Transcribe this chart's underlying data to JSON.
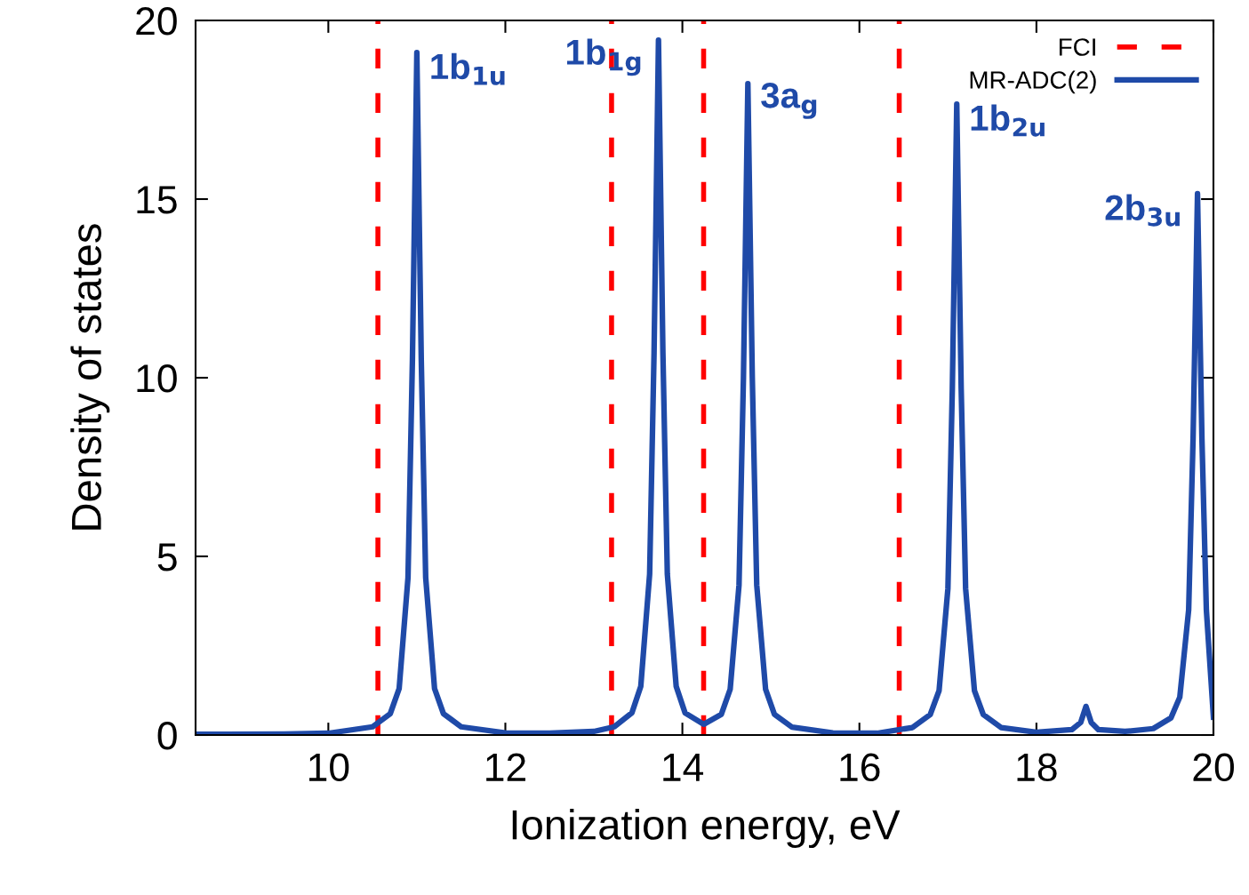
{
  "chart_data": {
    "type": "line",
    "xlabel": "Ionization energy, eV",
    "ylabel": "Density of states",
    "xlim": [
      8.5,
      20
    ],
    "ylim": [
      0,
      20
    ],
    "xticks": [
      10,
      12,
      14,
      16,
      18,
      20
    ],
    "yticks": [
      0,
      5,
      10,
      15,
      20
    ],
    "grid": false,
    "legend": "top right",
    "series": [
      {
        "name": "FCI",
        "color": "#ff0000",
        "line_style": "dashed",
        "x": [
          10.56,
          10.56,
          null,
          13.2,
          13.2,
          null,
          14.24,
          14.24,
          null,
          16.45,
          16.45
        ],
        "values": [
          0,
          20,
          null,
          0,
          20,
          null,
          0,
          20,
          null,
          0,
          20
        ]
      },
      {
        "name": "MR-ADC(2)",
        "color": "#1f4aa8",
        "line_style": "solid",
        "x": [
          8.5,
          9.5,
          10.0,
          10.5,
          10.7,
          10.8,
          10.9,
          10.95,
          11.0,
          11.05,
          11.1,
          11.2,
          11.3,
          11.5,
          12.0,
          12.5,
          13.0,
          13.23,
          13.43,
          13.53,
          13.63,
          13.68,
          13.73,
          13.78,
          13.83,
          13.93,
          14.03,
          14.24,
          14.44,
          14.54,
          14.64,
          14.69,
          14.74,
          14.79,
          14.84,
          14.94,
          15.04,
          15.24,
          15.7,
          16.2,
          16.6,
          16.8,
          16.9,
          17.0,
          17.05,
          17.1,
          17.15,
          17.2,
          17.3,
          17.4,
          17.6,
          18.0,
          18.4,
          18.5,
          18.56,
          18.62,
          18.7,
          19.0,
          19.32,
          19.52,
          19.62,
          19.72,
          19.77,
          19.82,
          19.87,
          19.92,
          20.0
        ],
        "values": [
          0.02,
          0.03,
          0.05,
          0.23,
          0.6,
          1.3,
          4.4,
          10.5,
          19.1,
          10.5,
          4.4,
          1.3,
          0.6,
          0.23,
          0.06,
          0.05,
          0.1,
          0.23,
          0.62,
          1.36,
          4.5,
          10.7,
          19.45,
          10.7,
          4.5,
          1.36,
          0.62,
          0.3,
          0.58,
          1.28,
          4.2,
          10.0,
          18.23,
          10.0,
          4.2,
          1.28,
          0.58,
          0.22,
          0.06,
          0.05,
          0.21,
          0.57,
          1.24,
          4.1,
          9.7,
          17.66,
          9.7,
          4.1,
          1.24,
          0.57,
          0.21,
          0.08,
          0.15,
          0.35,
          0.8,
          0.35,
          0.15,
          0.1,
          0.18,
          0.48,
          1.06,
          3.5,
          8.3,
          15.15,
          8.3,
          3.5,
          0.5
        ]
      }
    ],
    "annotations": [
      {
        "text": "1b$_{1u}$",
        "x": 11.0,
        "y": 19.1
      },
      {
        "text": "1b$_{1g}$",
        "x": 13.73,
        "y": 19.45
      },
      {
        "text": "3a$_{g}$",
        "x": 14.74,
        "y": 18.23
      },
      {
        "text": "1b$_{2u}$",
        "x": 17.1,
        "y": 17.66
      },
      {
        "text": "2b$_{3u}$",
        "x": 19.82,
        "y": 15.15
      }
    ]
  }
}
